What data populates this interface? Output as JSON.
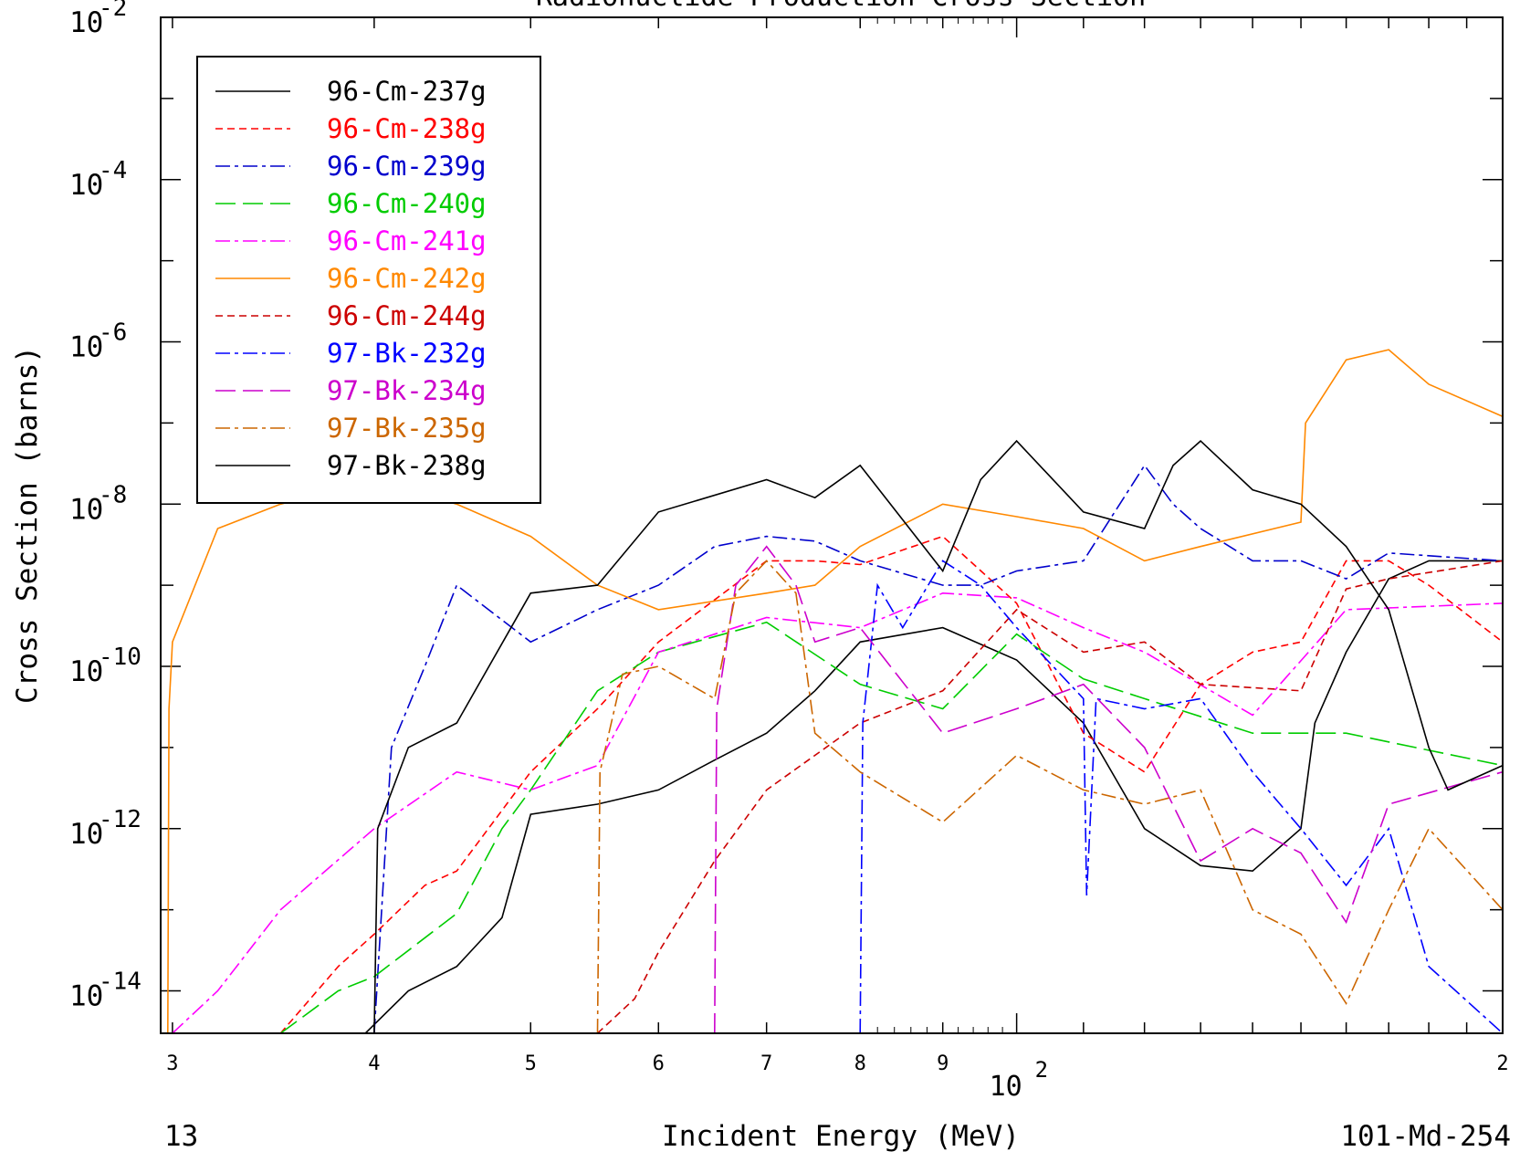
{
  "chart_data": {
    "type": "line",
    "title": "Radionuclide Production Cross Section",
    "xlabel": "Incident Energy (MeV)",
    "ylabel": "Cross Section (barns)",
    "x_scale": "log",
    "y_scale": "log",
    "xlim": [
      29.5,
      200
    ],
    "ylim": [
      3e-15,
      0.01
    ],
    "legend_position": "top-left",
    "footer_left": "13",
    "footer_right": "101-Md-254",
    "x_tick_labels": [
      {
        "value": 30,
        "label": "3"
      },
      {
        "value": 40,
        "label": "4"
      },
      {
        "value": 50,
        "label": "5"
      },
      {
        "value": 60,
        "label": "6"
      },
      {
        "value": 70,
        "label": "7"
      },
      {
        "value": 80,
        "label": "8"
      },
      {
        "value": 90,
        "label": "9"
      },
      {
        "value": 200,
        "label": "2"
      }
    ],
    "x_decade_label": {
      "value": 100,
      "base": "10",
      "exp": "2"
    },
    "y_tick_labels": [
      {
        "value": 0.01,
        "base": "10",
        "exp": "-2"
      },
      {
        "value": 0.0001,
        "base": "10",
        "exp": "-4"
      },
      {
        "value": 1e-06,
        "base": "10",
        "exp": "-6"
      },
      {
        "value": 1e-08,
        "base": "10",
        "exp": "-8"
      },
      {
        "value": 1e-10,
        "base": "10",
        "exp": "-10"
      },
      {
        "value": 1e-12,
        "base": "10",
        "exp": "-12"
      },
      {
        "value": 1e-14,
        "base": "10",
        "exp": "-14"
      }
    ],
    "series": [
      {
        "name": "96-Cm-237g",
        "color": "#000000",
        "dash": "solid",
        "points": [
          [
            39.5,
            3e-15
          ],
          [
            42,
            1e-14
          ],
          [
            45,
            2e-14
          ],
          [
            48,
            8e-14
          ],
          [
            50,
            1.5e-12
          ],
          [
            55,
            2e-12
          ],
          [
            60,
            3e-12
          ],
          [
            65,
            7e-12
          ],
          [
            70,
            1.5e-11
          ],
          [
            75,
            5e-11
          ],
          [
            80,
            2e-10
          ],
          [
            90,
            3e-10
          ],
          [
            100,
            1.2e-10
          ],
          [
            110,
            2e-11
          ],
          [
            120,
            1e-12
          ],
          [
            130,
            3.5e-13
          ],
          [
            140,
            3e-13
          ],
          [
            150,
            1e-12
          ],
          [
            153,
            2e-11
          ],
          [
            160,
            1.5e-10
          ],
          [
            170,
            1.2e-09
          ],
          [
            180,
            2e-09
          ],
          [
            200,
            2e-09
          ]
        ]
      },
      {
        "name": "96-Cm-238g",
        "color": "#ff0000",
        "dash": "short",
        "points": [
          [
            35,
            3e-15
          ],
          [
            38,
            2e-14
          ],
          [
            40,
            5e-14
          ],
          [
            43,
            2e-13
          ],
          [
            45,
            3e-13
          ],
          [
            50,
            5e-12
          ],
          [
            55,
            3e-11
          ],
          [
            60,
            2e-10
          ],
          [
            70,
            2e-09
          ],
          [
            75,
            2e-09
          ],
          [
            80,
            1.8e-09
          ],
          [
            90,
            4e-09
          ],
          [
            100,
            6e-10
          ],
          [
            110,
            1.5e-11
          ],
          [
            120,
            5e-12
          ],
          [
            130,
            6e-11
          ],
          [
            140,
            1.5e-10
          ],
          [
            150,
            2e-10
          ],
          [
            160,
            2e-09
          ],
          [
            170,
            2e-09
          ],
          [
            180,
            1e-09
          ],
          [
            200,
            2e-10
          ]
        ]
      },
      {
        "name": "96-Cm-239g",
        "color": "#0000cc",
        "dash": "dashdot",
        "points": [
          [
            40,
            3e-15
          ],
          [
            41,
            1e-11
          ],
          [
            43,
            1e-10
          ],
          [
            45,
            1e-09
          ],
          [
            50,
            2e-10
          ],
          [
            55,
            5e-10
          ],
          [
            60,
            1e-09
          ],
          [
            65,
            3e-09
          ],
          [
            70,
            4e-09
          ],
          [
            75,
            3.5e-09
          ],
          [
            80,
            2e-09
          ],
          [
            90,
            1e-09
          ],
          [
            95,
            1e-09
          ],
          [
            100,
            1.5e-09
          ],
          [
            110,
            2e-09
          ],
          [
            120,
            3e-08
          ],
          [
            125,
            1e-08
          ],
          [
            130,
            5e-09
          ],
          [
            140,
            2e-09
          ],
          [
            150,
            2e-09
          ],
          [
            160,
            1.2e-09
          ],
          [
            170,
            2.5e-09
          ],
          [
            200,
            2e-09
          ]
        ]
      },
      {
        "name": "96-Cm-240g",
        "color": "#00cc00",
        "dash": "longdash",
        "points": [
          [
            35,
            3e-15
          ],
          [
            38,
            1e-14
          ],
          [
            40,
            1.5e-14
          ],
          [
            45,
            9e-14
          ],
          [
            48,
            1e-12
          ],
          [
            50,
            3e-12
          ],
          [
            55,
            5e-11
          ],
          [
            60,
            1.5e-10
          ],
          [
            70,
            3.5e-10
          ],
          [
            80,
            6e-11
          ],
          [
            90,
            3e-11
          ],
          [
            100,
            2.5e-10
          ],
          [
            110,
            7e-11
          ],
          [
            120,
            4e-11
          ],
          [
            140,
            1.5e-11
          ],
          [
            160,
            1.5e-11
          ],
          [
            200,
            6e-12
          ]
        ]
      },
      {
        "name": "96-Cm-241g",
        "color": "#ff00ff",
        "dash": "dashdot",
        "points": [
          [
            30,
            3e-15
          ],
          [
            32,
            1e-14
          ],
          [
            35,
            1e-13
          ],
          [
            40,
            1e-12
          ],
          [
            45,
            5e-12
          ],
          [
            50,
            3e-12
          ],
          [
            55,
            6e-12
          ],
          [
            60,
            1.5e-10
          ],
          [
            70,
            4e-10
          ],
          [
            80,
            3e-10
          ],
          [
            90,
            8e-10
          ],
          [
            100,
            7e-10
          ],
          [
            110,
            3e-10
          ],
          [
            120,
            1.5e-10
          ],
          [
            140,
            2.5e-11
          ],
          [
            160,
            5e-10
          ],
          [
            200,
            6e-10
          ]
        ]
      },
      {
        "name": "96-Cm-242g",
        "color": "#ff8800",
        "dash": "solid",
        "points": [
          [
            29.8,
            3e-15
          ],
          [
            29.85,
            3e-11
          ],
          [
            30,
            2e-10
          ],
          [
            32,
            5e-09
          ],
          [
            35,
            1e-08
          ],
          [
            40,
            2e-08
          ],
          [
            45,
            1e-08
          ],
          [
            50,
            4e-09
          ],
          [
            55,
            1e-09
          ],
          [
            60,
            5e-10
          ],
          [
            70,
            8e-10
          ],
          [
            75,
            1e-09
          ],
          [
            80,
            3e-09
          ],
          [
            90,
            1e-08
          ],
          [
            100,
            7e-09
          ],
          [
            110,
            5e-09
          ],
          [
            120,
            2e-09
          ],
          [
            130,
            3e-09
          ],
          [
            150,
            6e-09
          ],
          [
            151,
            1e-07
          ],
          [
            160,
            6e-07
          ],
          [
            170,
            8e-07
          ],
          [
            180,
            3e-07
          ],
          [
            200,
            1.2e-07
          ]
        ]
      },
      {
        "name": "96-Cm-244g",
        "color": "#cc0000",
        "dash": "short",
        "points": [
          [
            55,
            3e-15
          ],
          [
            58,
            8e-15
          ],
          [
            60,
            3e-14
          ],
          [
            65,
            4e-13
          ],
          [
            70,
            3e-12
          ],
          [
            80,
            2e-11
          ],
          [
            90,
            5e-11
          ],
          [
            100,
            5e-10
          ],
          [
            110,
            1.5e-10
          ],
          [
            120,
            2e-10
          ],
          [
            130,
            6e-11
          ],
          [
            150,
            5e-11
          ],
          [
            160,
            9e-10
          ],
          [
            170,
            1.2e-09
          ],
          [
            200,
            2e-09
          ]
        ]
      },
      {
        "name": "97-Bk-232g",
        "color": "#0000ff",
        "dash": "dashdot",
        "points": [
          [
            80,
            3e-15
          ],
          [
            80.3,
            2e-11
          ],
          [
            82,
            1e-09
          ],
          [
            85,
            3e-10
          ],
          [
            90,
            2e-09
          ],
          [
            95,
            1e-09
          ],
          [
            100,
            3e-10
          ],
          [
            110,
            4e-11
          ],
          [
            110.5,
            1.5e-13
          ],
          [
            112,
            4e-11
          ],
          [
            120,
            3e-11
          ],
          [
            130,
            4e-11
          ],
          [
            140,
            5e-12
          ],
          [
            150,
            1e-12
          ],
          [
            160,
            2e-13
          ],
          [
            170,
            1e-12
          ],
          [
            180,
            2e-14
          ],
          [
            200,
            3e-15
          ]
        ]
      },
      {
        "name": "97-Bk-234g",
        "color": "#cc00cc",
        "dash": "longdash",
        "points": [
          [
            65,
            3e-15
          ],
          [
            65.2,
            3e-11
          ],
          [
            67,
            1e-09
          ],
          [
            70,
            3e-09
          ],
          [
            73,
            1e-09
          ],
          [
            75,
            2e-10
          ],
          [
            80,
            3e-10
          ],
          [
            90,
            1.5e-11
          ],
          [
            100,
            3e-11
          ],
          [
            110,
            6e-11
          ],
          [
            120,
            1e-11
          ],
          [
            130,
            4e-13
          ],
          [
            140,
            1e-12
          ],
          [
            150,
            5e-13
          ],
          [
            160,
            7e-14
          ],
          [
            170,
            2e-12
          ],
          [
            200,
            5e-12
          ]
        ]
      },
      {
        "name": "97-Bk-235g",
        "color": "#cc6600",
        "dash": "dashdot",
        "points": [
          [
            55,
            3e-15
          ],
          [
            55.2,
            5e-12
          ],
          [
            57,
            8e-11
          ],
          [
            60,
            1e-10
          ],
          [
            65,
            4e-11
          ],
          [
            67,
            8e-10
          ],
          [
            70,
            2e-09
          ],
          [
            73,
            8e-10
          ],
          [
            75,
            1.5e-11
          ],
          [
            80,
            5e-12
          ],
          [
            90,
            1.2e-12
          ],
          [
            100,
            8e-12
          ],
          [
            110,
            3e-12
          ],
          [
            120,
            2e-12
          ],
          [
            130,
            3e-12
          ],
          [
            140,
            1e-13
          ],
          [
            150,
            5e-14
          ],
          [
            160,
            7e-15
          ],
          [
            170,
            1e-13
          ],
          [
            180,
            1e-12
          ],
          [
            200,
            1e-13
          ]
        ]
      },
      {
        "name": "97-Bk-238g",
        "color": "#000000",
        "dash": "solid",
        "points": [
          [
            40,
            3e-15
          ],
          [
            40.2,
            1e-12
          ],
          [
            42,
            1e-11
          ],
          [
            45,
            2e-11
          ],
          [
            50,
            8e-10
          ],
          [
            55,
            1e-09
          ],
          [
            60,
            8e-09
          ],
          [
            70,
            2e-08
          ],
          [
            75,
            1.2e-08
          ],
          [
            80,
            3e-08
          ],
          [
            90,
            1.5e-09
          ],
          [
            95,
            2e-08
          ],
          [
            100,
            6e-08
          ],
          [
            110,
            8e-09
          ],
          [
            120,
            5e-09
          ],
          [
            125,
            3e-08
          ],
          [
            130,
            6e-08
          ],
          [
            140,
            1.5e-08
          ],
          [
            150,
            1e-08
          ],
          [
            160,
            3e-09
          ],
          [
            170,
            5e-10
          ],
          [
            180,
            1e-11
          ],
          [
            185,
            3e-12
          ],
          [
            200,
            6e-12
          ]
        ]
      }
    ]
  }
}
